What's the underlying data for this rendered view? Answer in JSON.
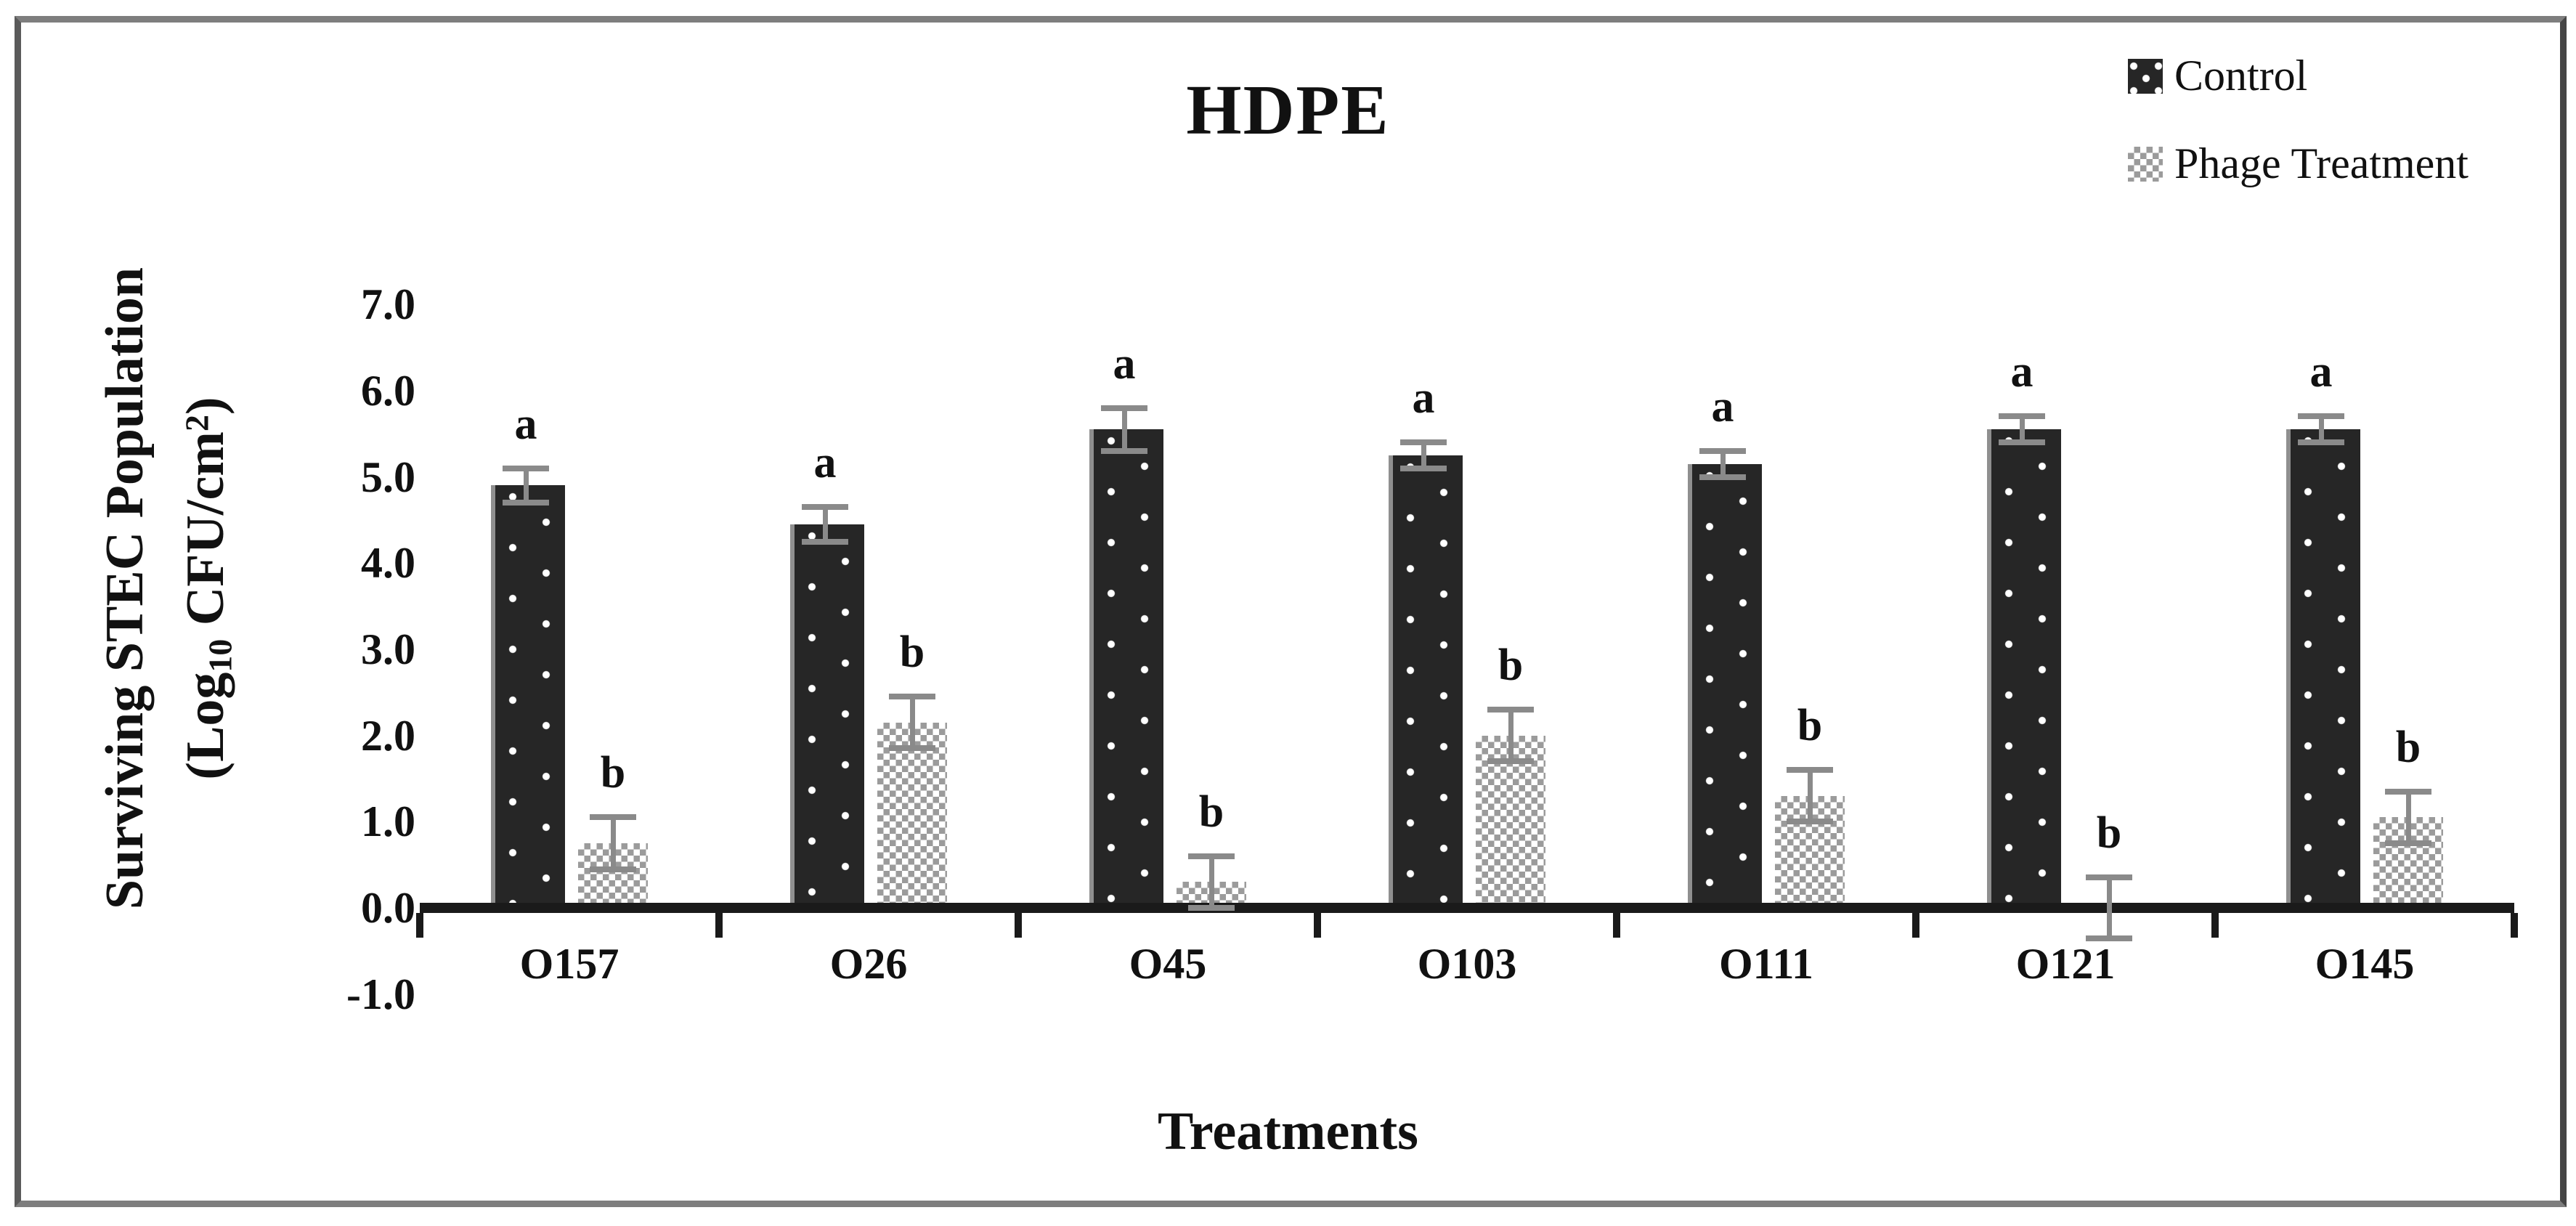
{
  "figure": {
    "title": "HDPE",
    "xlabel": "Treatments",
    "ylabel_line1": "Surviving STEC Population",
    "ylabel_units": {
      "open": "(Log",
      "sub": "10",
      "mid": " CFU/cm",
      "sup": "2",
      "close": ")"
    },
    "legend": [
      {
        "label": "Control"
      },
      {
        "label": "Phage Treatment"
      }
    ]
  },
  "chart_data": {
    "type": "bar",
    "title": "HDPE",
    "xlabel": "Treatments",
    "ylabel": "Surviving STEC Population (Log10 CFU/cm2)",
    "categories": [
      "O157",
      "O26",
      "O45",
      "O103",
      "O111",
      "O121",
      "O145"
    ],
    "series": [
      {
        "name": "Control",
        "pattern": "dark-dotted",
        "values": [
          4.9,
          4.45,
          5.55,
          5.25,
          5.15,
          5.55,
          5.55
        ],
        "errors": [
          0.2,
          0.2,
          0.25,
          0.15,
          0.15,
          0.15,
          0.15
        ],
        "sig_letters": [
          "a",
          "a",
          "a",
          "a",
          "a",
          "a",
          "a"
        ]
      },
      {
        "name": "Phage Treatment",
        "pattern": "gray-checker",
        "values": [
          0.75,
          2.15,
          0.3,
          2.0,
          1.3,
          0.0,
          1.05
        ],
        "errors": [
          0.3,
          0.3,
          0.3,
          0.3,
          0.3,
          0.35,
          0.3
        ],
        "sig_letters": [
          "b",
          "b",
          "b",
          "b",
          "b",
          "b",
          "b"
        ]
      }
    ],
    "yticks": [
      "7.0",
      "6.0",
      "5.0",
      "4.0",
      "3.0",
      "2.0",
      "1.0",
      "0.0",
      "-1.0"
    ],
    "ylim": [
      -1.0,
      7.0
    ],
    "grid": false,
    "error_bars": "symmetric-with-caps",
    "legend_position": "top-right",
    "colors": {
      "control_fill": "#262626",
      "control_dots": "#ffffff",
      "phage_check": "#9b9b9b",
      "error_bar": "#8a8a8a",
      "axis": "#1a1a1a",
      "frame": "#7e7e7e",
      "text": "#111111"
    }
  }
}
